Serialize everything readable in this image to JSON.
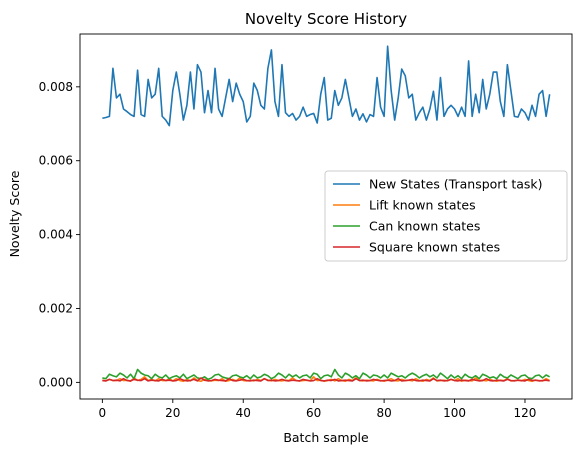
{
  "chart_data": {
    "type": "line",
    "title": "Novelty Score History",
    "xlabel": "Batch sample",
    "ylabel": "Novelty Score",
    "xlim": [
      -6.35,
      133.35
    ],
    "ylim": [
      -0.00045,
      0.00943
    ],
    "xticks": [
      0,
      20,
      40,
      60,
      80,
      100,
      120
    ],
    "xtick_labels": [
      "0",
      "20",
      "40",
      "60",
      "80",
      "100",
      "120"
    ],
    "yticks": [
      0.0,
      0.002,
      0.004,
      0.006,
      0.008
    ],
    "ytick_labels": [
      "0.000",
      "0.002",
      "0.004",
      "0.006",
      "0.008"
    ],
    "grid": false,
    "legend_position": "center-right",
    "series": [
      {
        "name": "New States (Transport task)",
        "color": "#1f77b4",
        "values": [
          0.00715,
          0.00717,
          0.0072,
          0.0085,
          0.0077,
          0.0078,
          0.0074,
          0.00733,
          0.00725,
          0.0072,
          0.00845,
          0.00725,
          0.0072,
          0.0082,
          0.0077,
          0.0078,
          0.0085,
          0.0072,
          0.0071,
          0.00695,
          0.0079,
          0.0084,
          0.0078,
          0.0071,
          0.0075,
          0.0084,
          0.0074,
          0.0086,
          0.0084,
          0.0073,
          0.0079,
          0.0073,
          0.0085,
          0.0074,
          0.0072,
          0.0077,
          0.0082,
          0.0076,
          0.0081,
          0.0078,
          0.0076,
          0.00705,
          0.0072,
          0.0081,
          0.0079,
          0.0075,
          0.0074,
          0.0085,
          0.009,
          0.0076,
          0.0072,
          0.0086,
          0.0073,
          0.0072,
          0.00728,
          0.0071,
          0.0072,
          0.00745,
          0.0072,
          0.00725,
          0.00728,
          0.00702,
          0.0078,
          0.00825,
          0.0071,
          0.00715,
          0.0079,
          0.0075,
          0.0077,
          0.0082,
          0.0077,
          0.0072,
          0.0074,
          0.0071,
          0.00727,
          0.00705,
          0.00725,
          0.0072,
          0.00825,
          0.00745,
          0.0072,
          0.0091,
          0.0079,
          0.0071,
          0.0077,
          0.00848,
          0.0083,
          0.0077,
          0.0078,
          0.0071,
          0.0073,
          0.00745,
          0.0071,
          0.0074,
          0.00788,
          0.0071,
          0.00825,
          0.0072,
          0.0074,
          0.0075,
          0.0074,
          0.0072,
          0.00745,
          0.0072,
          0.0087,
          0.0072,
          0.0078,
          0.0073,
          0.0082,
          0.0074,
          0.0078,
          0.0084,
          0.0084,
          0.0076,
          0.0072,
          0.0086,
          0.0079,
          0.0072,
          0.00718,
          0.0074,
          0.0073,
          0.0071,
          0.0075,
          0.0072,
          0.0078,
          0.0079,
          0.0072,
          0.0078
        ]
      },
      {
        "name": "Lift known states",
        "color": "#ff7f0e",
        "values": [
          6e-05,
          4e-05,
          8e-05,
          5e-05,
          5e-05,
          0.0001,
          5e-05,
          6e-05,
          3e-05,
          0.00012,
          5e-05,
          8e-05,
          0.00015,
          5e-05,
          8e-05,
          4e-05,
          0.0001,
          5e-05,
          5e-05,
          0.0001,
          4e-05,
          0.0001,
          5e-05,
          3e-05,
          8e-05,
          4e-05,
          0.00012,
          5e-05,
          3e-05,
          8e-05,
          5e-05,
          4e-05,
          6e-05,
          5e-05,
          0.0001,
          3e-05,
          5e-05,
          8e-05,
          4e-05,
          0.00012,
          5e-05,
          4e-05,
          6e-05,
          4e-05,
          8e-05,
          5e-05,
          0.0001,
          6e-05,
          4e-05,
          8e-05,
          5e-05,
          4e-05,
          6e-05,
          5e-05,
          0.00012,
          5e-05,
          4e-05,
          5e-05,
          6e-05,
          4e-05,
          0.00015,
          5e-05,
          6e-05,
          3e-05,
          5e-05,
          8e-05,
          4e-05,
          0.0001,
          5e-05,
          3e-05,
          8e-05,
          5e-05,
          0.00012,
          5e-05,
          4e-05,
          6e-05,
          5e-05,
          4e-05,
          8e-05,
          5e-05,
          3e-05,
          6e-05,
          0.0001,
          5e-05,
          4e-05,
          8e-05,
          5e-05,
          6e-05,
          4e-05,
          0.0001,
          5e-05,
          3e-05,
          8e-05,
          5e-05,
          0.00012,
          4e-05,
          5e-05,
          6e-05,
          4e-05,
          8e-05,
          5e-05,
          0.0001,
          3e-05,
          6e-05,
          5e-05,
          4e-05,
          0.00012,
          5e-05,
          6e-05,
          4e-05,
          8e-05,
          5e-05,
          3e-05,
          6e-05,
          5e-05,
          0.0001,
          4e-05,
          5e-05,
          6e-05,
          4e-05,
          8e-05,
          5e-05,
          3e-05,
          6e-05,
          5e-05,
          4e-05,
          0.0001,
          5e-05
        ]
      },
      {
        "name": "Can known states",
        "color": "#2ca02c",
        "values": [
          0.00012,
          0.0001,
          0.00022,
          0.00018,
          0.00015,
          0.00025,
          0.0002,
          0.00012,
          0.00022,
          0.0001,
          0.00035,
          0.00025,
          0.0002,
          0.00018,
          0.0001,
          0.00022,
          0.00015,
          0.00012,
          0.0002,
          0.0001,
          0.00015,
          0.00018,
          0.00012,
          0.00022,
          0.0001,
          0.00015,
          0.0002,
          0.00012,
          0.0001,
          0.00015,
          8e-05,
          0.00012,
          0.0002,
          0.00022,
          0.00015,
          0.00012,
          0.0001,
          0.00018,
          0.0002,
          0.00015,
          0.00012,
          0.00018,
          0.0001,
          0.0002,
          0.00012,
          0.00015,
          0.00022,
          0.00018,
          0.0001,
          0.00015,
          0.00025,
          0.0002,
          0.00012,
          0.00022,
          0.00015,
          0.0002,
          0.00012,
          0.00018,
          0.0002,
          0.00012,
          0.00025,
          0.00022,
          0.0001,
          0.00018,
          0.0002,
          0.00015,
          0.00035,
          0.0002,
          0.00012,
          0.00025,
          0.0002,
          0.00012,
          0.00018,
          0.0001,
          0.00025,
          0.0002,
          0.00012,
          0.0002,
          0.00018,
          0.00012,
          0.0002,
          0.00012,
          0.00025,
          0.0002,
          0.00015,
          0.00018,
          0.00012,
          0.0002,
          0.00025,
          0.0002,
          0.00012,
          0.00018,
          0.00022,
          0.00015,
          0.0002,
          0.00012,
          0.00025,
          0.00018,
          0.0001,
          0.0002,
          0.00012,
          0.00018,
          0.0001,
          0.00022,
          0.00015,
          0.00012,
          0.00018,
          0.0001,
          0.00022,
          0.00018,
          0.00012,
          0.00015,
          0.0001,
          0.00022,
          0.00015,
          0.00012,
          0.0002,
          0.00015,
          0.0001,
          0.00018,
          0.0002,
          0.00012,
          0.0001,
          0.00018,
          0.0002,
          0.00012,
          0.0002,
          0.00015
        ]
      },
      {
        "name": "Square known states",
        "color": "#d62728",
        "values": [
          5e-05,
          4e-05,
          8e-05,
          5e-05,
          6e-05,
          4e-05,
          0.0001,
          5e-05,
          4e-05,
          8e-05,
          6e-05,
          5e-05,
          0.0001,
          4e-05,
          6e-05,
          5e-05,
          4e-05,
          8e-05,
          5e-05,
          6e-05,
          4e-05,
          5e-05,
          0.0001,
          6e-05,
          4e-05,
          5e-05,
          8e-05,
          4e-05,
          0.00012,
          6e-05,
          4e-05,
          5e-05,
          8e-05,
          6e-05,
          5e-05,
          4e-05,
          0.0001,
          5e-05,
          4e-05,
          6e-05,
          8e-05,
          5e-05,
          4e-05,
          6e-05,
          5e-05,
          4e-05,
          0.0001,
          5e-05,
          6e-05,
          4e-05,
          5e-05,
          8e-05,
          5e-05,
          4e-05,
          6e-05,
          5e-05,
          4e-05,
          8e-05,
          6e-05,
          4e-05,
          5e-05,
          0.0001,
          5e-05,
          4e-05,
          6e-05,
          5e-05,
          8e-05,
          4e-05,
          5e-05,
          6e-05,
          5e-05,
          4e-05,
          0.0001,
          5e-05,
          6e-05,
          4e-05,
          5e-05,
          8e-05,
          6e-05,
          4e-05,
          5e-05,
          6e-05,
          4e-05,
          5e-05,
          0.0001,
          4e-05,
          5e-05,
          6e-05,
          8e-05,
          5e-05,
          4e-05,
          6e-05,
          5e-05,
          4e-05,
          0.0001,
          5e-05,
          6e-05,
          4e-05,
          5e-05,
          8e-05,
          5e-05,
          4e-05,
          6e-05,
          5e-05,
          4e-05,
          8e-05,
          6e-05,
          4e-05,
          5e-05,
          0.0001,
          5e-05,
          4e-05,
          6e-05,
          5e-05,
          4e-05,
          8e-05,
          5e-05,
          4e-05,
          6e-05,
          5e-05,
          4e-05,
          8e-05,
          5e-05,
          6e-05,
          4e-05,
          5e-05,
          6e-05,
          4e-05
        ]
      }
    ]
  }
}
